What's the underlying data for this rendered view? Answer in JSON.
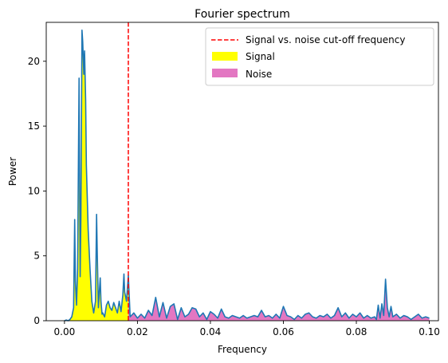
{
  "chart_data": {
    "type": "area",
    "title": "Fourier spectrum",
    "xlabel": "Frequency",
    "ylabel": "Power",
    "xlim": [
      -0.005,
      0.1025
    ],
    "ylim": [
      0,
      23
    ],
    "xticks": [
      0.0,
      0.02,
      0.04,
      0.06,
      0.08,
      0.1
    ],
    "xtick_labels": [
      "0.00",
      "0.02",
      "0.04",
      "0.06",
      "0.08",
      "0.10"
    ],
    "yticks": [
      0,
      5,
      10,
      15,
      20
    ],
    "ytick_labels": [
      "0",
      "5",
      "10",
      "15",
      "20"
    ],
    "cutoff_frequency": 0.0175,
    "legend_position": "top-right",
    "legend": [
      {
        "label": "Signal vs. noise cut-off frequency",
        "kind": "dashed-line",
        "color": "#ff0000"
      },
      {
        "label": "Signal",
        "kind": "patch",
        "color": "#ffff00"
      },
      {
        "label": "Noise",
        "kind": "patch",
        "color": "#e377c2"
      }
    ],
    "colors": {
      "spectrum_line": "#1f77b4",
      "signal_fill": "#ffff00",
      "noise_fill": "#e377c2",
      "cutoff_line": "#ff0000"
    },
    "series": [
      {
        "x": [
          0.0,
          0.0005,
          0.001,
          0.0015,
          0.002,
          0.0025,
          0.0028,
          0.003,
          0.0033,
          0.0036,
          0.004,
          0.0043,
          0.0045,
          0.0048,
          0.005,
          0.0053,
          0.0055,
          0.0058,
          0.006,
          0.0065,
          0.007,
          0.0075,
          0.008,
          0.0085,
          0.0088,
          0.009,
          0.0093,
          0.0095,
          0.0098,
          0.01,
          0.0103,
          0.0105,
          0.011,
          0.0115,
          0.012,
          0.0125,
          0.013,
          0.0135,
          0.014,
          0.0145,
          0.015,
          0.0155,
          0.016,
          0.0163,
          0.0165,
          0.017,
          0.0175,
          0.018,
          0.019,
          0.02,
          0.021,
          0.022,
          0.023,
          0.024,
          0.025,
          0.026,
          0.027,
          0.028,
          0.029,
          0.03,
          0.031,
          0.032,
          0.033,
          0.034,
          0.035,
          0.036,
          0.037,
          0.038,
          0.039,
          0.04,
          0.041,
          0.042,
          0.043,
          0.044,
          0.045,
          0.046,
          0.047,
          0.048,
          0.049,
          0.05,
          0.051,
          0.052,
          0.053,
          0.054,
          0.055,
          0.056,
          0.057,
          0.058,
          0.059,
          0.06,
          0.061,
          0.062,
          0.063,
          0.064,
          0.065,
          0.066,
          0.067,
          0.068,
          0.069,
          0.07,
          0.071,
          0.072,
          0.073,
          0.074,
          0.075,
          0.076,
          0.077,
          0.078,
          0.079,
          0.08,
          0.081,
          0.082,
          0.083,
          0.084,
          0.085,
          0.0855,
          0.086,
          0.0865,
          0.087,
          0.0875,
          0.088,
          0.0885,
          0.089,
          0.0895,
          0.09,
          0.091,
          0.092,
          0.093,
          0.094,
          0.095,
          0.096,
          0.097,
          0.098,
          0.099,
          0.1
        ],
        "y": [
          0.0,
          0.05,
          0.0,
          0.1,
          0.3,
          1.0,
          7.8,
          3.0,
          1.2,
          4.0,
          18.7,
          3.4,
          8.0,
          22.4,
          21.5,
          19.0,
          20.8,
          17.0,
          12.0,
          7.0,
          4.0,
          1.5,
          0.6,
          1.5,
          8.2,
          5.0,
          1.0,
          2.0,
          3.3,
          1.5,
          0.5,
          0.6,
          0.3,
          1.2,
          1.5,
          1.0,
          0.8,
          1.4,
          1.0,
          0.6,
          1.5,
          0.7,
          2.0,
          3.6,
          2.2,
          1.5,
          3.5,
          0.3,
          0.6,
          0.2,
          0.5,
          0.2,
          0.8,
          0.4,
          1.8,
          0.3,
          1.4,
          0.2,
          1.1,
          1.3,
          0.1,
          1.0,
          0.3,
          0.5,
          1.0,
          0.9,
          0.3,
          0.6,
          0.1,
          0.7,
          0.5,
          0.2,
          0.9,
          0.3,
          0.2,
          0.4,
          0.3,
          0.2,
          0.4,
          0.2,
          0.3,
          0.4,
          0.3,
          0.8,
          0.3,
          0.4,
          0.2,
          0.5,
          0.2,
          1.1,
          0.4,
          0.3,
          0.1,
          0.4,
          0.2,
          0.5,
          0.6,
          0.3,
          0.2,
          0.4,
          0.3,
          0.5,
          0.2,
          0.4,
          1.0,
          0.3,
          0.6,
          0.2,
          0.5,
          0.3,
          0.6,
          0.2,
          0.4,
          0.2,
          0.3,
          0.1,
          1.2,
          0.2,
          1.3,
          0.4,
          3.2,
          1.0,
          0.3,
          1.1,
          0.3,
          0.5,
          0.2,
          0.4,
          0.3,
          0.1,
          0.3,
          0.5,
          0.2,
          0.3,
          0.2
        ]
      }
    ]
  }
}
